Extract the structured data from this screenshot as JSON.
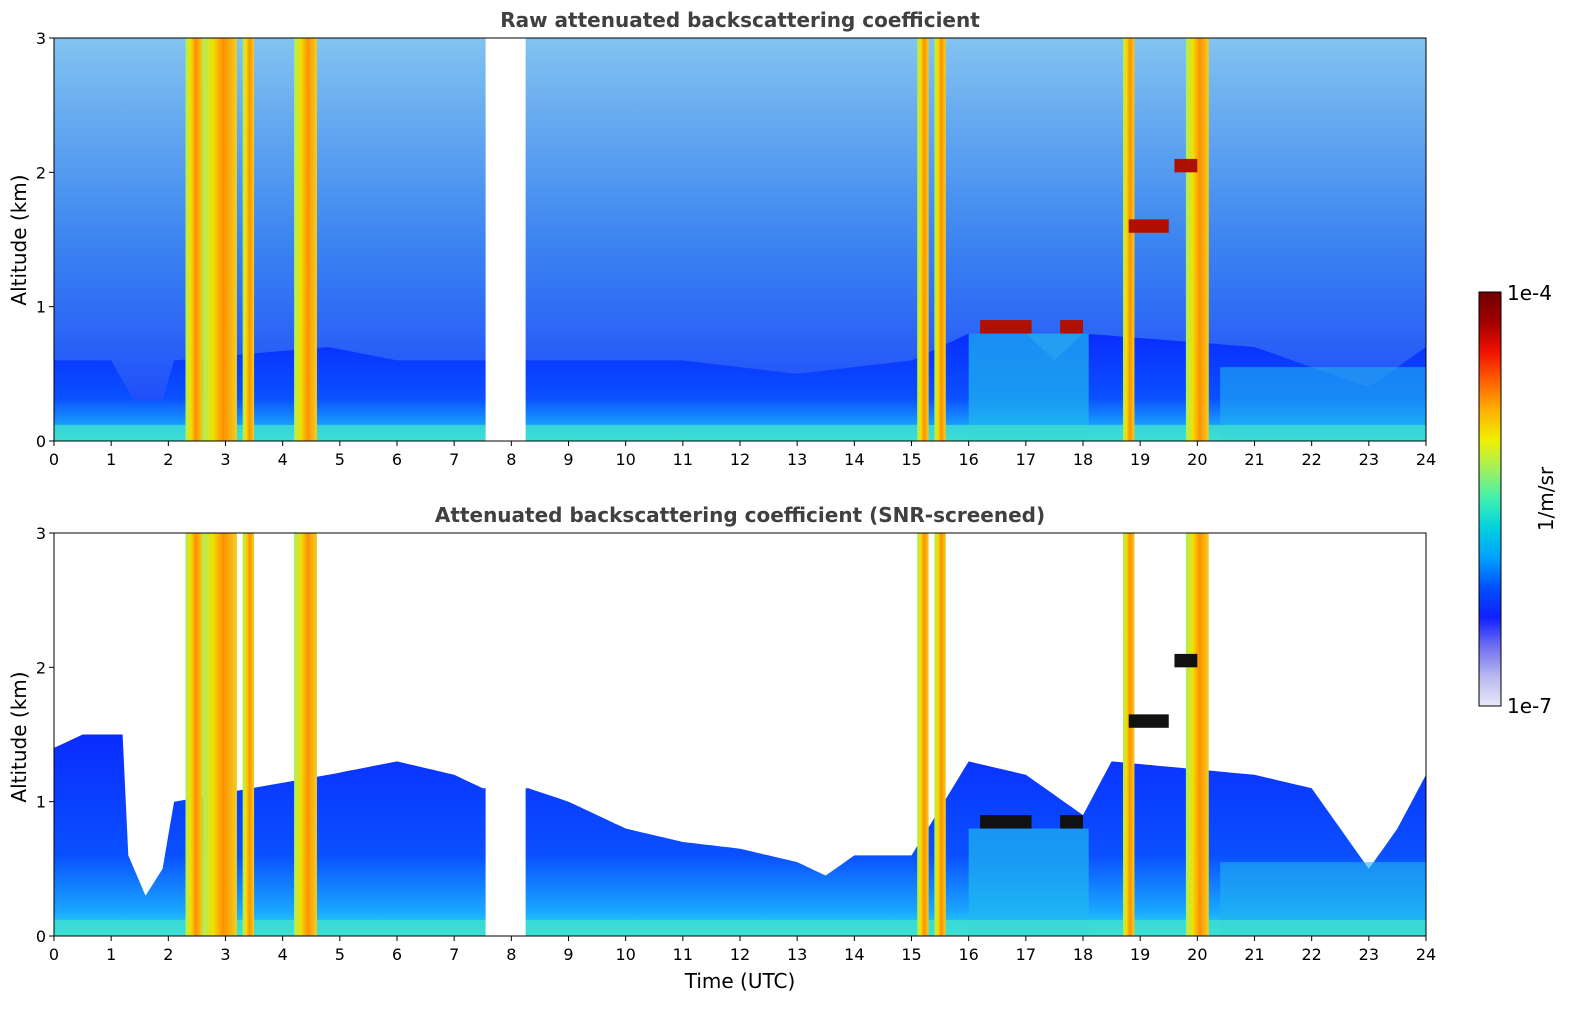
{
  "chart_data": [
    {
      "type": "heatmap",
      "title": "Raw attenuated backscattering coefficient",
      "xlabel": "",
      "ylabel": "Altitude (km)",
      "xlim": [
        0,
        24
      ],
      "ylim": [
        0,
        3
      ],
      "xticks": [
        "0",
        "1",
        "2",
        "3",
        "4",
        "5",
        "6",
        "7",
        "8",
        "9",
        "10",
        "11",
        "12",
        "13",
        "14",
        "15",
        "16",
        "17",
        "18",
        "19",
        "20",
        "21",
        "22",
        "23",
        "24"
      ],
      "yticks": [
        "0",
        "1",
        "2",
        "3"
      ],
      "data_gaps": [
        [
          7.55,
          8.25
        ]
      ],
      "boundary_layer_top_km": [
        [
          0,
          0.6
        ],
        [
          1,
          0.6
        ],
        [
          1.4,
          0.3
        ],
        [
          1.9,
          0.3
        ],
        [
          2.1,
          0.6
        ],
        [
          4.8,
          0.7
        ],
        [
          6,
          0.6
        ],
        [
          7.5,
          0.6
        ],
        [
          8.3,
          0.6
        ],
        [
          11,
          0.6
        ],
        [
          13,
          0.5
        ],
        [
          15,
          0.6
        ],
        [
          16,
          0.8
        ],
        [
          17,
          0.8
        ],
        [
          17.5,
          0.6
        ],
        [
          18,
          0.8
        ],
        [
          21,
          0.7
        ],
        [
          23,
          0.4
        ],
        [
          24,
          0.7
        ]
      ],
      "cloud_columns_utc": [
        [
          2.3,
          2.6
        ],
        [
          2.6,
          3.2
        ],
        [
          3.3,
          3.5
        ],
        [
          4.2,
          4.6
        ],
        [
          15.1,
          15.3
        ],
        [
          15.4,
          15.6
        ],
        [
          18.7,
          18.9
        ],
        [
          19.8,
          20.2
        ]
      ]
    },
    {
      "type": "heatmap",
      "title": "Attenuated backscattering coefficient (SNR-screened)",
      "xlabel": "Time (UTC)",
      "ylabel": "Altitude (km)",
      "xlim": [
        0,
        24
      ],
      "ylim": [
        0,
        3
      ],
      "xticks": [
        "0",
        "1",
        "2",
        "3",
        "4",
        "5",
        "6",
        "7",
        "8",
        "9",
        "10",
        "11",
        "12",
        "13",
        "14",
        "15",
        "16",
        "17",
        "18",
        "19",
        "20",
        "21",
        "22",
        "23",
        "24"
      ],
      "yticks": [
        "0",
        "1",
        "2",
        "3"
      ],
      "data_gaps": [
        [
          7.55,
          8.25
        ]
      ],
      "screened_top_km": [
        [
          0,
          1.4
        ],
        [
          0.5,
          1.5
        ],
        [
          1.2,
          1.5
        ],
        [
          1.3,
          0.6
        ],
        [
          1.6,
          0.3
        ],
        [
          1.9,
          0.5
        ],
        [
          2.1,
          1.0
        ],
        [
          4.8,
          1.2
        ],
        [
          6,
          1.3
        ],
        [
          7.0,
          1.2
        ],
        [
          7.5,
          1.1
        ],
        [
          8.3,
          1.1
        ],
        [
          9,
          1.0
        ],
        [
          10,
          0.8
        ],
        [
          11,
          0.7
        ],
        [
          12,
          0.65
        ],
        [
          13,
          0.55
        ],
        [
          13.5,
          0.45
        ],
        [
          14,
          0.6
        ],
        [
          15,
          0.6
        ],
        [
          16,
          1.3
        ],
        [
          17,
          1.2
        ],
        [
          18,
          0.9
        ],
        [
          18.5,
          1.3
        ],
        [
          21,
          1.2
        ],
        [
          22,
          1.1
        ],
        [
          23,
          0.5
        ],
        [
          23.5,
          0.8
        ],
        [
          24,
          1.2
        ]
      ],
      "cloud_columns_utc": [
        [
          2.3,
          2.6
        ],
        [
          2.6,
          3.2
        ],
        [
          3.3,
          3.5
        ],
        [
          4.2,
          4.6
        ],
        [
          15.1,
          15.3
        ],
        [
          15.4,
          15.6
        ],
        [
          18.7,
          18.9
        ],
        [
          19.8,
          20.2
        ]
      ]
    }
  ],
  "colorbar": {
    "label": "1/m/sr",
    "max_label": "1e-4",
    "min_label": "1e-7",
    "colors": [
      "#e8e8f8",
      "#b8b8f0",
      "#7070f0",
      "#1020ff",
      "#0050ff",
      "#00a0ff",
      "#00d0e0",
      "#40f0b0",
      "#a0f060",
      "#f0f000",
      "#ffb000",
      "#ff6000",
      "#f01000",
      "#a00000",
      "#700000"
    ]
  }
}
